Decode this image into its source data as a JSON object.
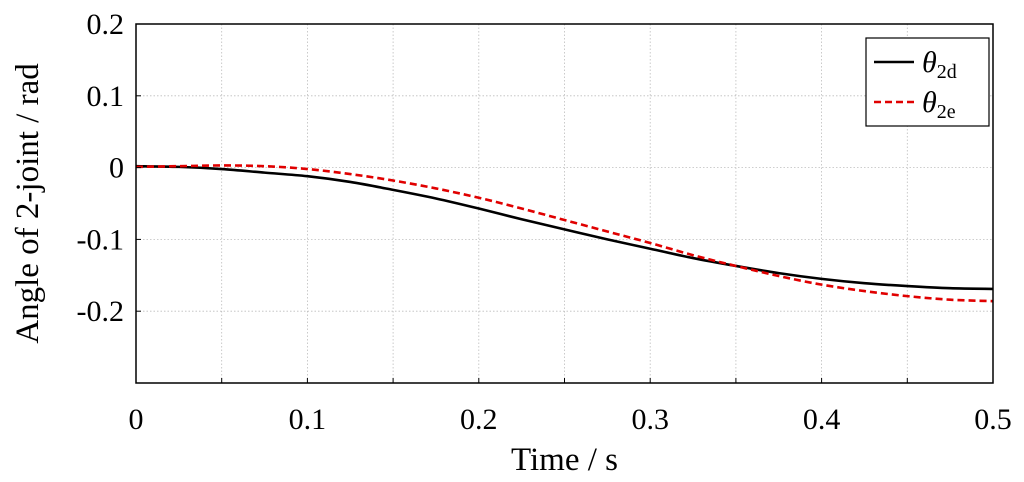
{
  "chart_data": {
    "type": "line",
    "title": "",
    "xlabel": "Time / s",
    "ylabel": "Angle of  2-joint / rad",
    "xlim": [
      0,
      0.5
    ],
    "ylim": [
      -0.3,
      0.2
    ],
    "x_ticks": [
      0,
      0.1,
      0.2,
      0.3,
      0.4,
      0.5
    ],
    "x_tick_labels": [
      "0",
      "0.1",
      "0.2",
      "0.3",
      "0.4",
      "0.5"
    ],
    "y_ticks": [
      0.2,
      0.1,
      0,
      -0.1,
      -0.2
    ],
    "y_tick_labels": [
      "0.2",
      "0.1",
      "0",
      "-0.1",
      "-0.2"
    ],
    "grid": true,
    "legend_position": "top-right",
    "series": [
      {
        "name": "θ2d",
        "symbol": "θ",
        "subscript": "2d",
        "color": "#000000",
        "style": "solid",
        "x": [
          0,
          0.025,
          0.05,
          0.075,
          0.1,
          0.125,
          0.15,
          0.175,
          0.2,
          0.225,
          0.25,
          0.275,
          0.3,
          0.325,
          0.35,
          0.375,
          0.4,
          0.425,
          0.45,
          0.475,
          0.5
        ],
        "y": [
          0.002,
          0.001,
          -0.002,
          -0.007,
          -0.012,
          -0.02,
          -0.031,
          -0.043,
          -0.057,
          -0.072,
          -0.086,
          -0.1,
          -0.113,
          -0.126,
          -0.137,
          -0.147,
          -0.155,
          -0.161,
          -0.165,
          -0.168,
          -0.169
        ]
      },
      {
        "name": "θ2e",
        "symbol": "θ",
        "subscript": "2e",
        "color": "#e00000",
        "style": "dashed",
        "x": [
          0,
          0.025,
          0.05,
          0.075,
          0.1,
          0.125,
          0.15,
          0.175,
          0.2,
          0.225,
          0.25,
          0.275,
          0.3,
          0.325,
          0.35,
          0.375,
          0.4,
          0.425,
          0.45,
          0.475,
          0.5
        ],
        "y": [
          0.001,
          0.002,
          0.003,
          0.002,
          -0.002,
          -0.009,
          -0.018,
          -0.029,
          -0.042,
          -0.057,
          -0.073,
          -0.089,
          -0.105,
          -0.122,
          -0.137,
          -0.151,
          -0.163,
          -0.172,
          -0.179,
          -0.184,
          -0.186
        ]
      }
    ]
  }
}
